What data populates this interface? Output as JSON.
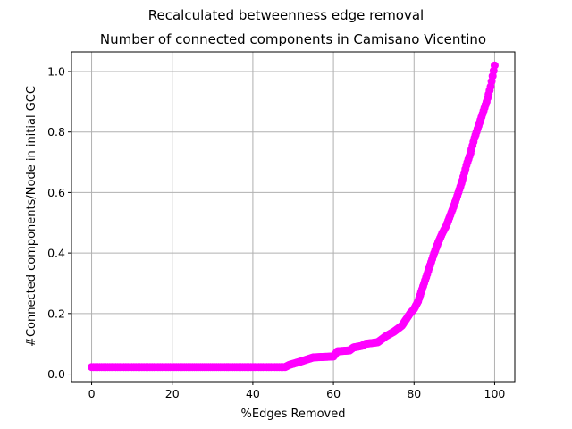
{
  "figure": {
    "suptitle": "Recalculated betweenness edge removal"
  },
  "chart_data": {
    "type": "scatter",
    "title": "Number of connected components in Camisano Vicentino",
    "xlabel": "%Edges Removed",
    "ylabel": "#Connected components/Node in initial GCC",
    "xlim": [
      -5,
      105
    ],
    "ylim": [
      -0.025,
      1.065
    ],
    "xticks": [
      "0",
      "20",
      "40",
      "60",
      "80",
      "100"
    ],
    "yticks": [
      "0.0",
      "0.2",
      "0.4",
      "0.6",
      "0.8",
      "1.0"
    ],
    "grid": true,
    "series": [
      {
        "color": "#ff00ff",
        "marker": "circle",
        "points": [
          [
            0,
            0.023
          ],
          [
            48,
            0.023
          ],
          [
            49,
            0.03
          ],
          [
            52,
            0.042
          ],
          [
            55,
            0.055
          ],
          [
            60,
            0.058
          ],
          [
            61,
            0.075
          ],
          [
            64,
            0.078
          ],
          [
            65,
            0.088
          ],
          [
            67,
            0.093
          ],
          [
            68,
            0.1
          ],
          [
            71,
            0.105
          ],
          [
            72,
            0.115
          ],
          [
            73,
            0.125
          ],
          [
            75,
            0.14
          ],
          [
            77,
            0.16
          ],
          [
            78,
            0.18
          ],
          [
            79,
            0.2
          ],
          [
            80,
            0.215
          ],
          [
            81,
            0.24
          ],
          [
            82,
            0.28
          ],
          [
            83,
            0.32
          ],
          [
            84,
            0.36
          ],
          [
            85,
            0.4
          ],
          [
            86,
            0.435
          ],
          [
            87,
            0.465
          ],
          [
            88,
            0.49
          ],
          [
            89,
            0.525
          ],
          [
            90,
            0.56
          ],
          [
            91,
            0.6
          ],
          [
            92,
            0.64
          ],
          [
            93,
            0.69
          ],
          [
            94,
            0.73
          ],
          [
            95,
            0.78
          ],
          [
            96,
            0.82
          ],
          [
            97,
            0.86
          ],
          [
            98,
            0.9
          ],
          [
            99,
            0.95
          ],
          [
            100,
            1.02
          ]
        ]
      }
    ]
  }
}
